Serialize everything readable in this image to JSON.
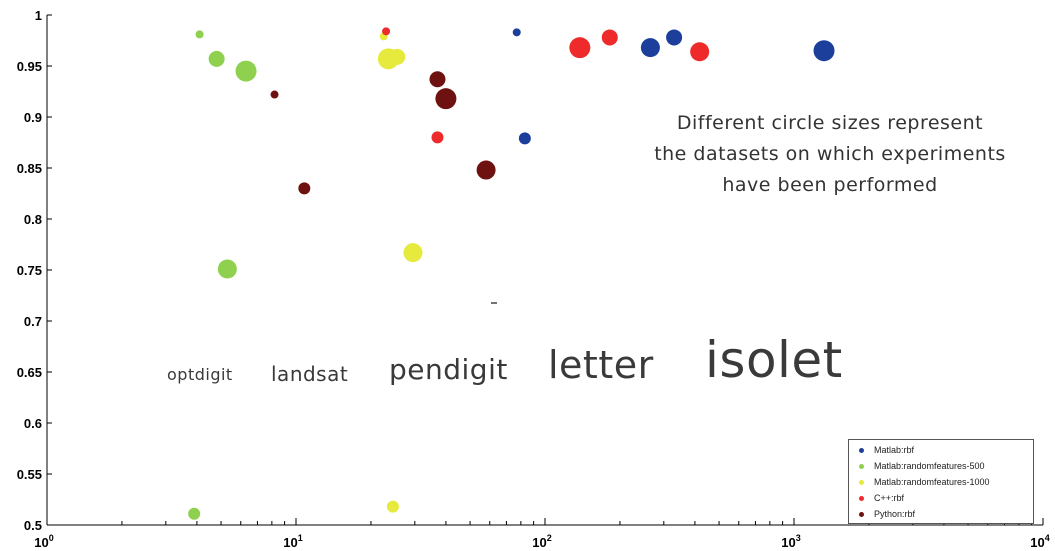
{
  "chart_data": {
    "type": "scatter",
    "title": "",
    "xlabel": "",
    "ylabel": "",
    "x_scale": "log",
    "xlim": [
      1,
      10000
    ],
    "ylim": [
      0.5,
      1
    ],
    "x_ticks": [
      "10^0",
      "10^1",
      "10^2",
      "10^3",
      "10^4"
    ],
    "y_ticks": [
      "0.5",
      "0.55",
      "0.6",
      "0.65",
      "0.7",
      "0.75",
      "0.8",
      "0.85",
      "0.9",
      "0.95",
      "1"
    ],
    "grid": false,
    "legend_position": "bottom-right",
    "series": [
      {
        "name": "Matlab:rbf",
        "color": "#1c3f9c",
        "points": [
          {
            "x": 77,
            "y": 0.983,
            "dataset": "optdigit"
          },
          {
            "x": 83,
            "y": 0.879,
            "dataset": "landsat"
          },
          {
            "x": 330,
            "y": 0.978,
            "dataset": "pendigit"
          },
          {
            "x": 265,
            "y": 0.968,
            "dataset": "letter"
          },
          {
            "x": 1320,
            "y": 0.965,
            "dataset": "isolet"
          }
        ]
      },
      {
        "name": "Matlab:randomfeatures-500",
        "color": "#8fd14f",
        "points": [
          {
            "x": 4.1,
            "y": 0.981,
            "dataset": "optdigit"
          },
          {
            "x": 3.9,
            "y": 0.511,
            "dataset": "landsat"
          },
          {
            "x": 4.8,
            "y": 0.957,
            "dataset": "pendigit"
          },
          {
            "x": 5.3,
            "y": 0.751,
            "dataset": "letter"
          },
          {
            "x": 6.3,
            "y": 0.945,
            "dataset": "isolet"
          }
        ]
      },
      {
        "name": "Matlab:randomfeatures-1000",
        "color": "#e5ea3c",
        "points": [
          {
            "x": 22.5,
            "y": 0.979,
            "dataset": "optdigit"
          },
          {
            "x": 24.5,
            "y": 0.518,
            "dataset": "landsat"
          },
          {
            "x": 25.5,
            "y": 0.959,
            "dataset": "pendigit"
          },
          {
            "x": 29.5,
            "y": 0.767,
            "dataset": "letter"
          },
          {
            "x": 23.5,
            "y": 0.957,
            "dataset": "isolet"
          }
        ]
      },
      {
        "name": "C++:rbf",
        "color": "#ee2a2a",
        "points": [
          {
            "x": 23,
            "y": 0.984,
            "dataset": "optdigit"
          },
          {
            "x": 37,
            "y": 0.88,
            "dataset": "landsat"
          },
          {
            "x": 182,
            "y": 0.978,
            "dataset": "pendigit"
          },
          {
            "x": 418,
            "y": 0.964,
            "dataset": "letter"
          },
          {
            "x": 138,
            "y": 0.968,
            "dataset": "isolet"
          }
        ]
      },
      {
        "name": "Python:rbf",
        "color": "#6e1111",
        "points": [
          {
            "x": 8.2,
            "y": 0.922,
            "dataset": "optdigit"
          },
          {
            "x": 10.8,
            "y": 0.83,
            "dataset": "landsat"
          },
          {
            "x": 37,
            "y": 0.937,
            "dataset": "pendigit"
          },
          {
            "x": 58,
            "y": 0.848,
            "dataset": "letter"
          },
          {
            "x": 40,
            "y": 0.918,
            "dataset": "isolet"
          }
        ]
      }
    ],
    "datasets": [
      "optdigit",
      "landsat",
      "pendigit",
      "letter",
      "isolet"
    ],
    "annotation": [
      "Different circle sizes represent",
      "the datasets on which experiments",
      "have been performed"
    ]
  }
}
